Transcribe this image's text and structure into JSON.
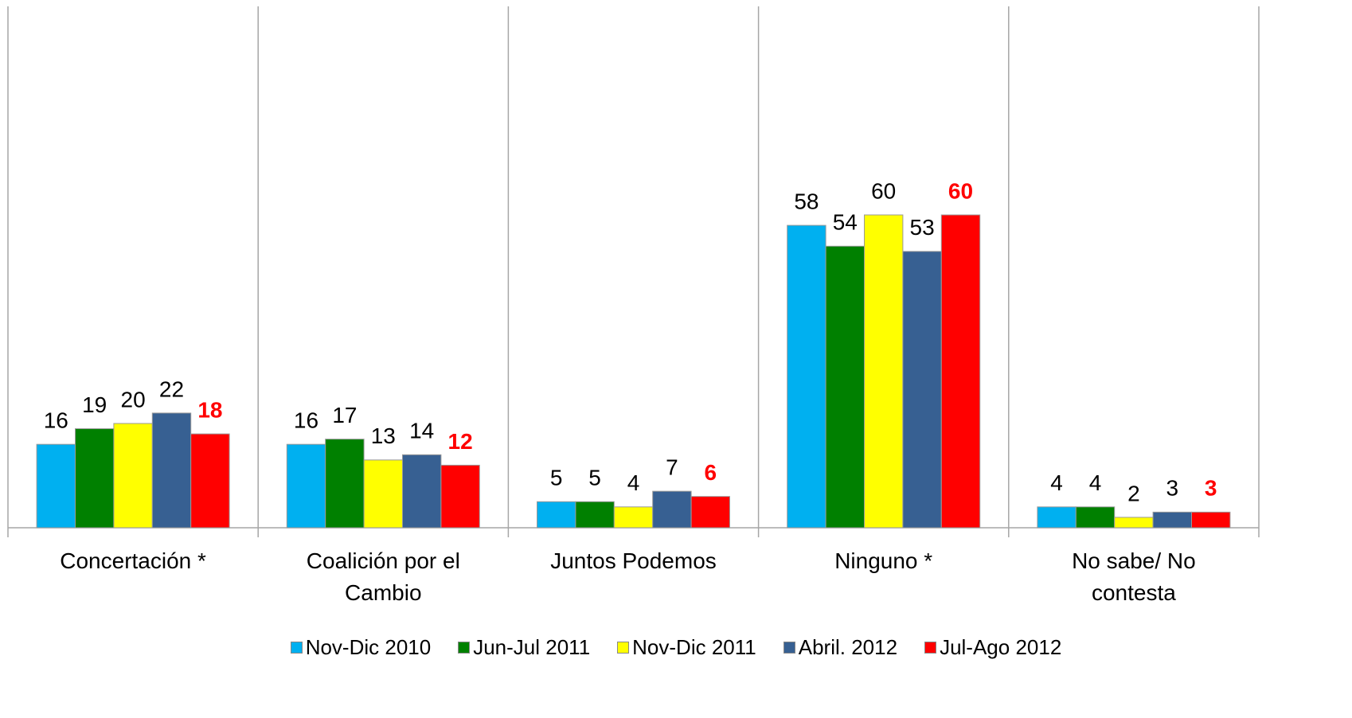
{
  "chart_data": {
    "type": "bar",
    "categories": [
      "Concertación *",
      "Coalición por el Cambio",
      "Juntos Podemos",
      "Ninguno *",
      "No sabe/ No contesta"
    ],
    "series": [
      {
        "name": "Nov-Dic 2010",
        "color": "#00b0f0",
        "values": [
          16,
          16,
          5,
          58,
          4
        ]
      },
      {
        "name": "Jun-Jul 2011",
        "color": "#008000",
        "values": [
          19,
          17,
          5,
          54,
          4
        ]
      },
      {
        "name": "Nov-Dic 2011",
        "color": "#ffff00",
        "values": [
          20,
          13,
          4,
          60,
          2
        ]
      },
      {
        "name": "Abril. 2012",
        "color": "#376092",
        "values": [
          22,
          14,
          7,
          53,
          3
        ]
      },
      {
        "name": "Jul-Ago 2012",
        "color": "#ff0000",
        "values": [
          18,
          12,
          6,
          60,
          3
        ],
        "highlight": true
      }
    ],
    "ylim": [
      0,
      100
    ],
    "grid": true,
    "legend": "bottom"
  }
}
